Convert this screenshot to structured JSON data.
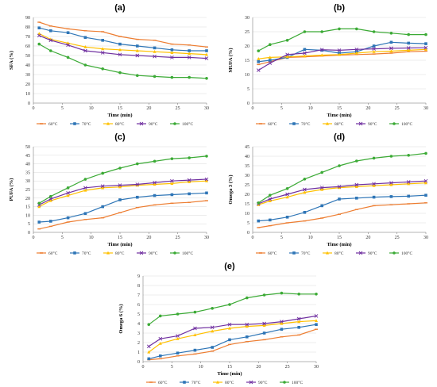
{
  "chart_data": [
    {
      "panel": "(a)",
      "type": "line",
      "title": "(a)",
      "xlabel": "Time (min)",
      "ylabel": "SFA (%)",
      "xlim": [
        0,
        30
      ],
      "ylim": [
        0,
        90
      ],
      "xticks": [
        0,
        5,
        10,
        15,
        20,
        25,
        30
      ],
      "yticks": [
        0,
        10,
        20,
        30,
        40,
        50,
        60,
        70,
        80,
        90
      ],
      "legend_position": "bottom",
      "x": [
        1,
        3,
        6,
        9,
        12,
        15,
        18,
        21,
        24,
        27,
        30
      ],
      "series": [
        {
          "name": "60°C",
          "color": "#ED7D31",
          "values": [
            85,
            81,
            78,
            76,
            75,
            70,
            67,
            66,
            62,
            61,
            59
          ]
        },
        {
          "name": "70°C",
          "color": "#2E75B6",
          "values": [
            79,
            76,
            74,
            69,
            66,
            62,
            60,
            58,
            56,
            55,
            55
          ]
        },
        {
          "name": "80°C",
          "color": "#FFC000",
          "values": [
            73,
            67,
            63,
            59,
            57,
            56,
            55,
            54,
            53,
            52,
            51
          ]
        },
        {
          "name": "90°C",
          "color": "#7030A0",
          "values": [
            71,
            66,
            61,
            55,
            53,
            51,
            50,
            49,
            48,
            48,
            47
          ]
        },
        {
          "name": "100°C",
          "color": "#3BAA35",
          "values": [
            62,
            55,
            48,
            40,
            36,
            32,
            29,
            28,
            27,
            27,
            26
          ]
        }
      ]
    },
    {
      "panel": "(b)",
      "type": "line",
      "title": "(b)",
      "xlabel": "Time (min)",
      "ylabel": "MUFA (%)",
      "xlim": [
        0,
        30
      ],
      "ylim": [
        0,
        30
      ],
      "xticks": [
        0,
        5,
        10,
        15,
        20,
        25,
        30
      ],
      "yticks": [
        0,
        5,
        10,
        15,
        20,
        25,
        30
      ],
      "legend_position": "bottom",
      "x": [
        1,
        3,
        6,
        9,
        12,
        15,
        18,
        21,
        24,
        27,
        30
      ],
      "series": [
        {
          "name": "60°C",
          "color": "#ED7D31",
          "values": [
            13.5,
            14.5,
            16,
            16.2,
            16.5,
            16.8,
            17,
            17.2,
            17.5,
            18,
            18.2
          ]
        },
        {
          "name": "70°C",
          "color": "#2E75B6",
          "values": [
            14.5,
            15,
            16,
            18.8,
            18.5,
            17.5,
            18,
            20,
            21.3,
            21,
            20.8
          ]
        },
        {
          "name": "80°C",
          "color": "#FFC000",
          "values": [
            15.5,
            16,
            16.2,
            16.5,
            16.8,
            17,
            17.5,
            18,
            18.2,
            18.5,
            18.8
          ]
        },
        {
          "name": "90°C",
          "color": "#7030A0",
          "values": [
            11.5,
            14,
            17,
            17.5,
            18.7,
            18.5,
            18.8,
            19,
            19.2,
            19.3,
            19.4
          ]
        },
        {
          "name": "100°C",
          "color": "#3BAA35",
          "values": [
            18.3,
            20.5,
            22,
            25,
            25,
            26,
            26,
            25,
            24.5,
            24,
            24
          ]
        }
      ]
    },
    {
      "panel": "(c)",
      "type": "line",
      "title": "(c)",
      "xlabel": "Time (min)",
      "ylabel": "PUFA (%)",
      "xlim": [
        0,
        30
      ],
      "ylim": [
        0,
        50
      ],
      "xticks": [
        0,
        5,
        10,
        15,
        20,
        25,
        30
      ],
      "yticks": [
        0,
        5,
        10,
        15,
        20,
        25,
        30,
        35,
        40,
        45,
        50
      ],
      "legend_position": "bottom",
      "x": [
        1,
        3,
        6,
        9,
        12,
        15,
        18,
        21,
        24,
        27,
        30
      ],
      "series": [
        {
          "name": "60°C",
          "color": "#ED7D31",
          "values": [
            2,
            3.5,
            6,
            7.5,
            8.5,
            11.5,
            14.5,
            16,
            17,
            17.5,
            18.5
          ]
        },
        {
          "name": "70°C",
          "color": "#2E75B6",
          "values": [
            6,
            6.5,
            8.5,
            11,
            15,
            19,
            20.5,
            21.5,
            22,
            22.5,
            23
          ]
        },
        {
          "name": "80°C",
          "color": "#FFC000",
          "values": [
            15,
            18.5,
            21.5,
            24.5,
            26,
            26.5,
            27.5,
            28,
            28.5,
            29.5,
            30
          ]
        },
        {
          "name": "90°C",
          "color": "#7030A0",
          "values": [
            16,
            19.5,
            23,
            26,
            27,
            27.5,
            28,
            29,
            30,
            30.5,
            31
          ]
        },
        {
          "name": "100°C",
          "color": "#3BAA35",
          "values": [
            17,
            21,
            26,
            31,
            34.5,
            37.5,
            40,
            41.5,
            43,
            43.5,
            44.5
          ]
        }
      ]
    },
    {
      "panel": "(d)",
      "type": "line",
      "title": "(d)",
      "xlabel": "Time (min)",
      "ylabel": "Omega 3 (%)",
      "xlim": [
        0,
        30
      ],
      "ylim": [
        0,
        45
      ],
      "xticks": [
        0,
        5,
        10,
        15,
        20,
        25,
        30
      ],
      "yticks": [
        0,
        5,
        10,
        15,
        20,
        25,
        30,
        35,
        40,
        45
      ],
      "legend_position": "bottom",
      "x": [
        1,
        3,
        6,
        9,
        12,
        15,
        18,
        21,
        24,
        27,
        30
      ],
      "series": [
        {
          "name": "60°C",
          "color": "#ED7D31",
          "values": [
            2.5,
            3.5,
            5,
            6,
            7.5,
            9.5,
            12,
            14,
            14.5,
            15,
            15.5
          ]
        },
        {
          "name": "70°C",
          "color": "#2E75B6",
          "values": [
            6,
            6.5,
            8,
            10.5,
            14,
            17.5,
            18,
            18.5,
            18.8,
            19,
            19.5
          ]
        },
        {
          "name": "80°C",
          "color": "#FFC000",
          "values": [
            14.5,
            16.5,
            18.5,
            21,
            22.5,
            23.5,
            24,
            24.5,
            25,
            25.5,
            26
          ]
        },
        {
          "name": "90°C",
          "color": "#7030A0",
          "values": [
            15,
            17.5,
            20,
            22.5,
            23.5,
            24,
            25,
            25.5,
            26,
            26.5,
            27
          ]
        },
        {
          "name": "100°C",
          "color": "#3BAA35",
          "values": [
            15.5,
            19.5,
            23,
            28,
            31.5,
            35,
            37.5,
            39,
            40,
            40.5,
            41.5
          ]
        }
      ]
    },
    {
      "panel": "(e)",
      "type": "line",
      "title": "(e)",
      "xlabel": "Time (min)",
      "ylabel": "Omega 6 (%)",
      "xlim": [
        0,
        30
      ],
      "ylim": [
        0,
        9
      ],
      "xticks": [
        0,
        5,
        10,
        15,
        20,
        25,
        30
      ],
      "yticks": [
        0,
        1,
        2,
        3,
        4,
        5,
        6,
        7,
        8,
        9
      ],
      "legend_position": "bottom",
      "x": [
        1,
        3,
        6,
        9,
        12,
        15,
        18,
        21,
        24,
        27,
        30
      ],
      "series": [
        {
          "name": "60°C",
          "color": "#ED7D31",
          "values": [
            0.2,
            0.3,
            0.6,
            0.8,
            1.1,
            1.8,
            2.1,
            2.3,
            2.6,
            2.8,
            3.4
          ]
        },
        {
          "name": "70°C",
          "color": "#2E75B6",
          "values": [
            0.3,
            0.6,
            0.9,
            1.2,
            1.5,
            2.3,
            2.6,
            3.0,
            3.4,
            3.6,
            3.9
          ]
        },
        {
          "name": "80°C",
          "color": "#FFC000",
          "values": [
            1.0,
            1.9,
            2.4,
            2.8,
            3.2,
            3.5,
            3.7,
            3.8,
            4.0,
            4.2,
            4.3
          ]
        },
        {
          "name": "90°C",
          "color": "#7030A0",
          "values": [
            1.6,
            2.4,
            2.7,
            3.5,
            3.6,
            3.9,
            3.9,
            4.0,
            4.2,
            4.5,
            4.8
          ]
        },
        {
          "name": "100°C",
          "color": "#3BAA35",
          "values": [
            3.9,
            4.8,
            5.0,
            5.2,
            5.6,
            6.0,
            6.7,
            7.0,
            7.2,
            7.1,
            7.1
          ]
        }
      ]
    }
  ]
}
